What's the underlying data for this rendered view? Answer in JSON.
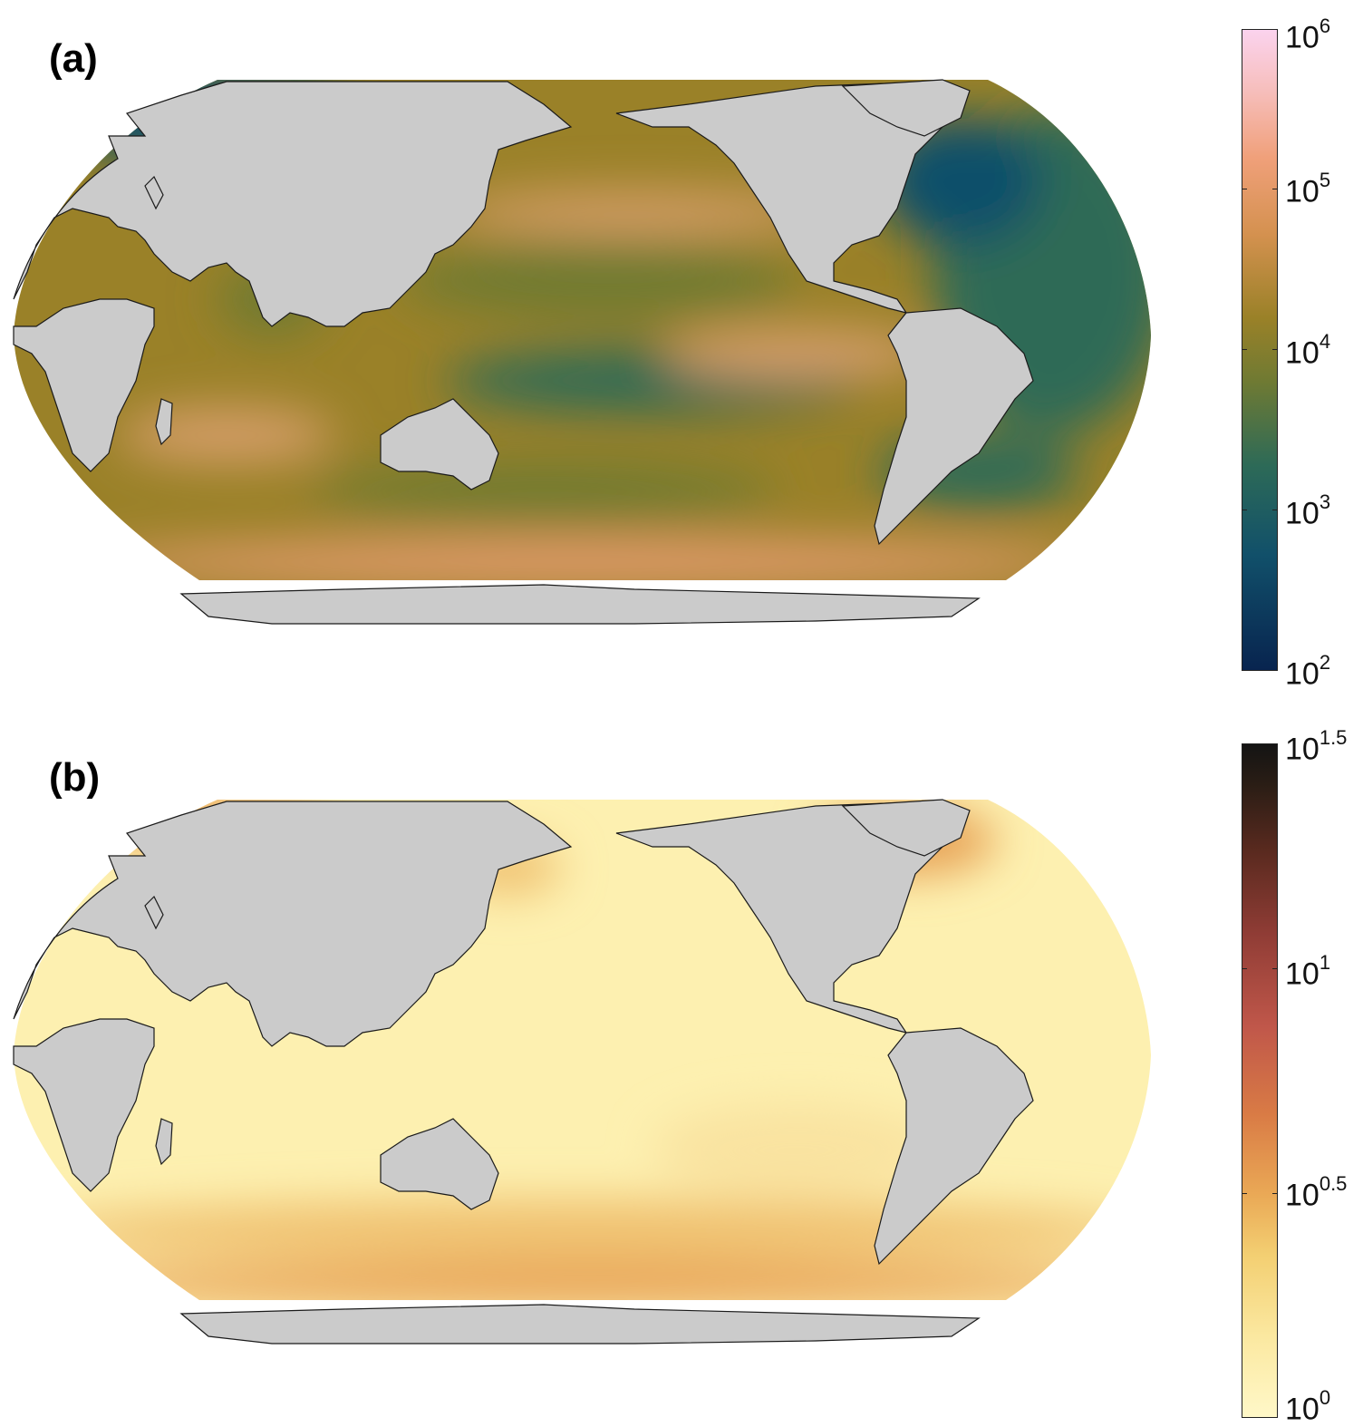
{
  "panels": [
    {
      "id": "a",
      "label": "(a)",
      "colorbar": {
        "scale": "log10",
        "range": [
          2,
          6
        ],
        "ticks": [
          {
            "base": "10",
            "exp": "6",
            "value": 6
          },
          {
            "base": "10",
            "exp": "5",
            "value": 5
          },
          {
            "base": "10",
            "exp": "4",
            "value": 4
          },
          {
            "base": "10",
            "exp": "3",
            "value": 3
          },
          {
            "base": "10",
            "exp": "2",
            "value": 2
          }
        ],
        "colors": [
          "#08244f",
          "#11506a",
          "#2d6a57",
          "#6f7a33",
          "#9a8128",
          "#d4914f",
          "#f0a07a",
          "#f6bdb9",
          "#fbd3ee"
        ]
      },
      "map_colors": {
        "ocean_base": "#9a8128",
        "ocean_mid": "#6f7a33",
        "ocean_low": "#2d6a57",
        "ocean_very_low": "#11506a",
        "ocean_high": "#d79f6a",
        "ocean_peak": "#f0a07a",
        "land": "#cbcbcb"
      }
    },
    {
      "id": "b",
      "label": "(b)",
      "colorbar": {
        "scale": "log10",
        "range": [
          0,
          1.5
        ],
        "ticks": [
          {
            "base": "10",
            "exp": "1.5",
            "value": 1.5
          },
          {
            "base": "10",
            "exp": "1",
            "value": 1
          },
          {
            "base": "10",
            "exp": "0.5",
            "value": 0.5
          },
          {
            "base": "10",
            "exp": "0",
            "value": 0
          }
        ],
        "colors": [
          "#fff8c8",
          "#fbe8a0",
          "#f3cf72",
          "#eaa956",
          "#d97b45",
          "#c0574a",
          "#8f3c35",
          "#5a2a1f",
          "#2a1d15",
          "#141414"
        ]
      },
      "map_colors": {
        "ocean_base": "#fdf0b0",
        "ocean_mid": "#f9e3a0",
        "ocean_edge": "#f0c272",
        "ocean_high": "#e8a458",
        "ocean_peak": "#e07a48",
        "land": "#cbcbcb"
      }
    }
  ]
}
